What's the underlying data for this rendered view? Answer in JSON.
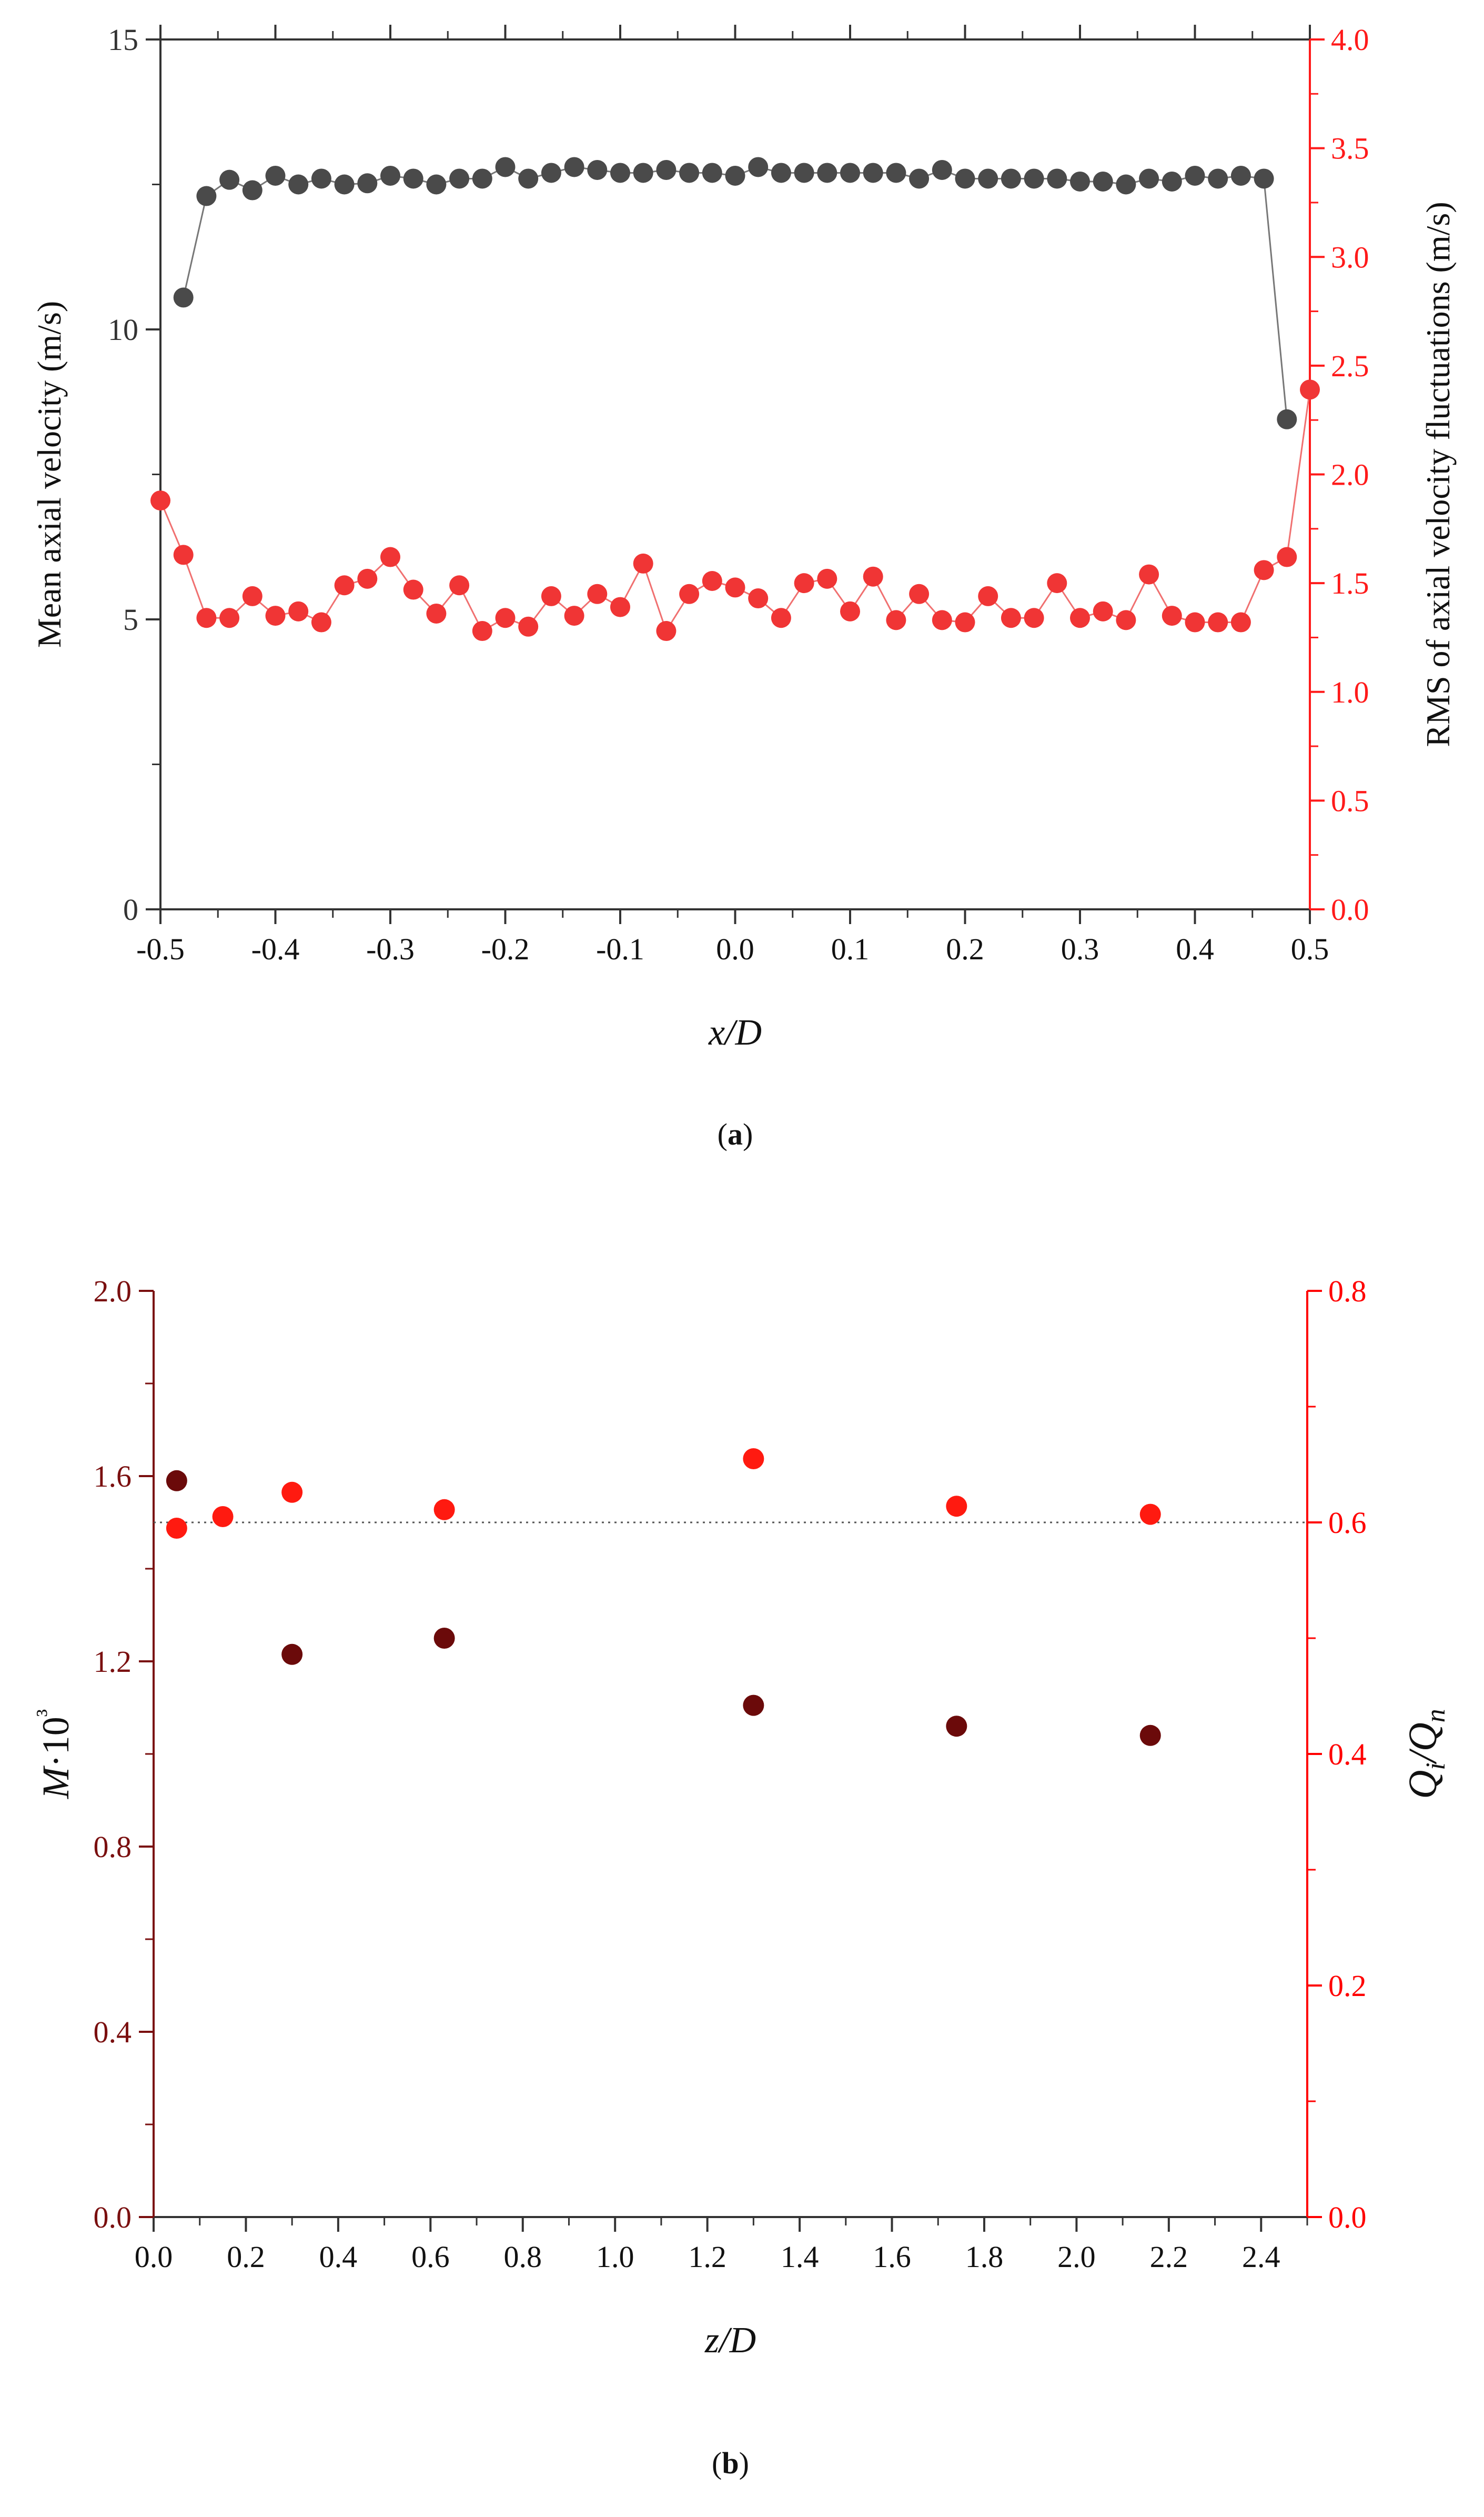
{
  "colors": {
    "panel_a_left_axis": "#333333",
    "panel_a_right_axis": "#ff1a1a",
    "panel_a_mean_marker": "#4a4a4a",
    "panel_a_rms_marker": "#f03535",
    "panel_b_left_axis": "#7a0f0f",
    "panel_b_right_axis": "#ff0000",
    "panel_b_m_marker": "#6b0a0a",
    "panel_b_q_marker": "#ff1a10",
    "reference_line": "#555555"
  },
  "chart_data": [
    {
      "id": "a",
      "type": "scatter",
      "panel_label": "a",
      "xlabel": "x/D",
      "ylabel": "Mean axial velocity (m/s)",
      "ylabel_right": "RMS of axial velocity fluctuations (m/s)",
      "xlim": [
        -0.5,
        0.5
      ],
      "ylim": [
        0,
        15
      ],
      "ylim_right": [
        0,
        4.0
      ],
      "x_ticks": [
        "-0.5",
        "-0.4",
        "-0.3",
        "-0.2",
        "-0.1",
        "0.0",
        "0.1",
        "0.2",
        "0.3",
        "0.4",
        "0.5"
      ],
      "y_ticks": [
        "0",
        "5",
        "10",
        "15"
      ],
      "y_ticks_right": [
        "0.0",
        "0.5",
        "1.0",
        "1.5",
        "2.0",
        "2.5",
        "3.0",
        "3.5",
        "4.0"
      ],
      "series": [
        {
          "name": "Mean axial velocity",
          "axis": "left",
          "x": [
            -0.48,
            -0.46,
            -0.44,
            -0.42,
            -0.4,
            -0.38,
            -0.36,
            -0.34,
            -0.32,
            -0.3,
            -0.28,
            -0.26,
            -0.24,
            -0.22,
            -0.2,
            -0.18,
            -0.16,
            -0.14,
            -0.12,
            -0.1,
            -0.08,
            -0.06,
            -0.04,
            -0.02,
            0.0,
            0.02,
            0.04,
            0.06,
            0.08,
            0.1,
            0.12,
            0.14,
            0.16,
            0.18,
            0.2,
            0.22,
            0.24,
            0.26,
            0.28,
            0.3,
            0.32,
            0.34,
            0.36,
            0.38,
            0.4,
            0.42,
            0.44,
            0.46,
            0.48
          ],
          "values": [
            10.55,
            12.3,
            12.58,
            12.4,
            12.65,
            12.5,
            12.6,
            12.5,
            12.52,
            12.65,
            12.6,
            12.5,
            12.6,
            12.6,
            12.8,
            12.6,
            12.7,
            12.8,
            12.75,
            12.7,
            12.7,
            12.75,
            12.7,
            12.7,
            12.65,
            12.8,
            12.7,
            12.7,
            12.7,
            12.7,
            12.7,
            12.7,
            12.6,
            12.75,
            12.6,
            12.6,
            12.6,
            12.6,
            12.6,
            12.55,
            12.55,
            12.5,
            12.6,
            12.55,
            12.65,
            12.6,
            12.65,
            12.6,
            8.45
          ]
        },
        {
          "name": "RMS of axial velocity fluctuations",
          "axis": "right",
          "x": [
            -0.5,
            -0.48,
            -0.46,
            -0.44,
            -0.42,
            -0.4,
            -0.38,
            -0.36,
            -0.34,
            -0.32,
            -0.3,
            -0.28,
            -0.26,
            -0.24,
            -0.22,
            -0.2,
            -0.18,
            -0.16,
            -0.14,
            -0.12,
            -0.1,
            -0.08,
            -0.06,
            -0.04,
            -0.02,
            0.0,
            0.02,
            0.04,
            0.06,
            0.08,
            0.1,
            0.12,
            0.14,
            0.16,
            0.18,
            0.2,
            0.22,
            0.24,
            0.26,
            0.28,
            0.3,
            0.32,
            0.34,
            0.36,
            0.38,
            0.4,
            0.42,
            0.44,
            0.46,
            0.48,
            0.5
          ],
          "values": [
            1.88,
            1.63,
            1.34,
            1.34,
            1.44,
            1.35,
            1.37,
            1.32,
            1.49,
            1.52,
            1.62,
            1.47,
            1.36,
            1.49,
            1.28,
            1.34,
            1.3,
            1.44,
            1.35,
            1.45,
            1.39,
            1.59,
            1.28,
            1.45,
            1.51,
            1.48,
            1.43,
            1.34,
            1.5,
            1.52,
            1.37,
            1.53,
            1.33,
            1.45,
            1.33,
            1.32,
            1.44,
            1.34,
            1.34,
            1.5,
            1.34,
            1.37,
            1.33,
            1.54,
            1.35,
            1.32,
            1.32,
            1.32,
            1.56,
            1.62,
            2.39
          ]
        }
      ]
    },
    {
      "id": "b",
      "type": "scatter",
      "panel_label": "b",
      "xlabel": "z/D",
      "ylabel": "M·10³",
      "ylabel_right": "Qi/Qn",
      "xlim": [
        0.0,
        2.5
      ],
      "ylim": [
        0.0,
        2.0
      ],
      "ylim_right": [
        0.0,
        0.8
      ],
      "x_ticks": [
        "0.0",
        "0.2",
        "0.4",
        "0.6",
        "0.8",
        "1.0",
        "1.2",
        "1.4",
        "1.6",
        "1.8",
        "2.0",
        "2.2",
        "2.4"
      ],
      "y_ticks": [
        "0.0",
        "0.4",
        "0.8",
        "1.2",
        "1.6",
        "2.0"
      ],
      "y_ticks_right": [
        "0.0",
        "0.2",
        "0.4",
        "0.6",
        "0.8"
      ],
      "reference_line_right": 0.6,
      "series": [
        {
          "name": "M·10³",
          "axis": "left",
          "x": [
            0.05,
            0.3,
            0.63,
            1.3,
            1.74,
            2.16
          ],
          "values": [
            1.59,
            1.215,
            1.25,
            1.105,
            1.06,
            1.04
          ]
        },
        {
          "name": "Qi/Qn",
          "axis": "right",
          "x": [
            0.05,
            0.15,
            0.3,
            0.63,
            1.3,
            1.74,
            2.16
          ],
          "values": [
            0.595,
            0.605,
            0.626,
            0.611,
            0.655,
            0.614,
            0.607
          ]
        }
      ]
    }
  ]
}
